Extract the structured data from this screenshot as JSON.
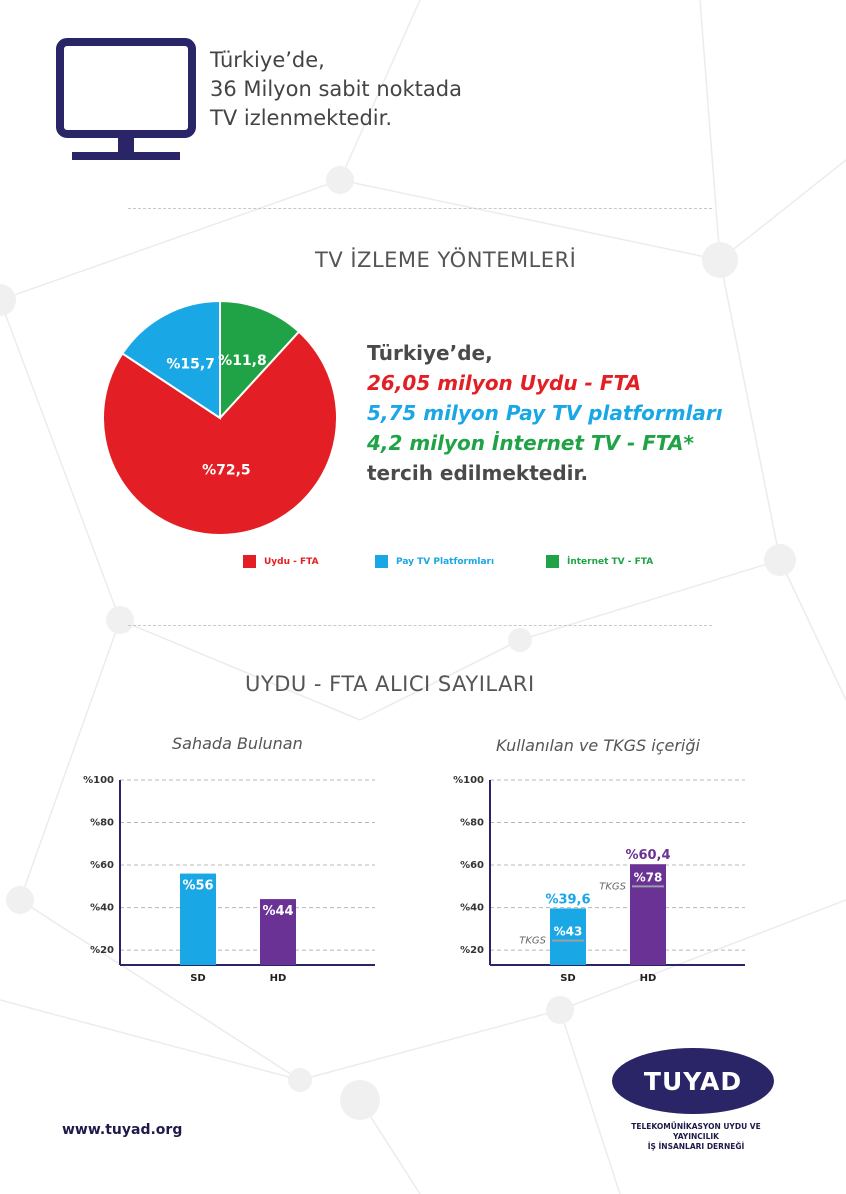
{
  "header": {
    "lines": [
      "Türkiye’de,",
      "36 Milyon sabit noktada",
      "TV izlenmektedir."
    ]
  },
  "colors": {
    "red": "#e31e24",
    "blue": "#1aa7e6",
    "green": "#1fa346",
    "purple": "#6a3295",
    "navy": "#2a2566",
    "grey_line": "#9aa0a6"
  },
  "icons": {
    "tv": "tv-monitor-icon"
  },
  "section1": {
    "title": "TV İZLEME YÖNTEMLERİ",
    "summary": {
      "intro": "Türkiye’de,",
      "uydu": "26,05 milyon Uydu - FTA",
      "paytv": "5,75 milyon Pay TV platformları",
      "internet": "4,2 milyon İnternet TV - FTA*",
      "outro": "tercih edilmektedir."
    },
    "legend": [
      "Uydu - FTA",
      "Pay TV Platformları",
      "İnternet TV - FTA"
    ]
  },
  "section2": {
    "title": "UYDU - FTA ALICI SAYILARI",
    "left_subtitle": "Sahada Bulunan",
    "right_subtitle": "Kullanılan ve TKGS içeriği"
  },
  "footer": {
    "url": "www.tuyad.org",
    "logo_text": "TUYAD",
    "org_line1": "TELEKOMÜNİKASYON UYDU VE YAYINCILIK",
    "org_line2": "İŞ İNSANLARI DERNEĞİ"
  },
  "chart_data": [
    {
      "type": "pie",
      "categories": [
        "Uydu - FTA",
        "Pay TV Platformları",
        "İnternet TV - FTA"
      ],
      "values": [
        72.5,
        15.7,
        11.8
      ],
      "labels": [
        "%72,5",
        "%15,7",
        "%11,8"
      ],
      "legend_placement": "bottom"
    },
    {
      "type": "bar",
      "title": "Sahada Bulunan",
      "categories": [
        "SD",
        "HD"
      ],
      "values": [
        56,
        44
      ],
      "labels": [
        "%56",
        "%44"
      ],
      "ytick_labels": [
        "%100",
        "%80",
        "%60",
        "%40",
        "%20"
      ],
      "yticks": [
        100,
        80,
        60,
        40,
        20
      ],
      "ylim": [
        13,
        100
      ],
      "grid": true
    },
    {
      "type": "bar",
      "title": "Kullanılan ve TKGS içeriği",
      "categories": [
        "SD",
        "HD"
      ],
      "values": [
        39.6,
        60.4
      ],
      "labels": [
        "%39,6",
        "%60,4"
      ],
      "tkgs": {
        "label": "TKGS",
        "values": [
          43,
          78
        ],
        "labels": [
          "%43",
          "%78"
        ]
      },
      "ytick_labels": [
        "%100",
        "%80",
        "%60",
        "%40",
        "%20"
      ],
      "yticks": [
        100,
        80,
        60,
        40,
        20
      ],
      "ylim": [
        13,
        100
      ],
      "grid": true
    }
  ]
}
